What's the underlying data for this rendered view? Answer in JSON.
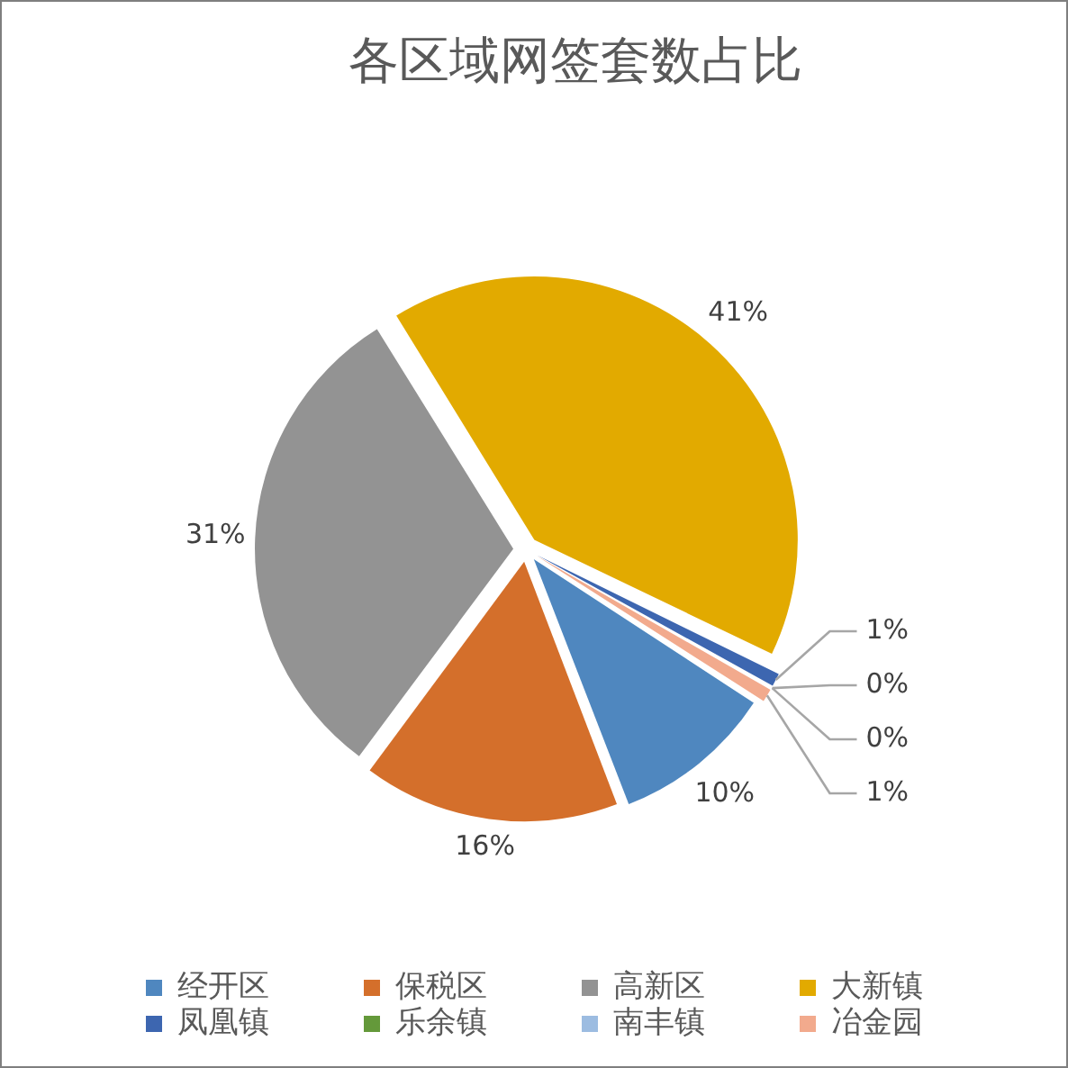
{
  "chart_data": {
    "type": "pie",
    "title": "各区域网签套数占比",
    "categories": [
      "经开区",
      "保税区",
      "高新区",
      "大新镇",
      "凤凰镇",
      "乐余镇",
      "南丰镇",
      "冶金园"
    ],
    "values": [
      10,
      16,
      31,
      41,
      1,
      0,
      0,
      1
    ],
    "colors": [
      "#4f87bf",
      "#d46f2b",
      "#939393",
      "#e2aa00",
      "#3d66b0",
      "#64993a",
      "#9cbce1",
      "#f2aa8d"
    ],
    "value_labels": [
      "10%",
      "16%",
      "31%",
      "41%",
      "1%",
      "0%",
      "0%",
      "1%"
    ],
    "legend": "bottom"
  }
}
